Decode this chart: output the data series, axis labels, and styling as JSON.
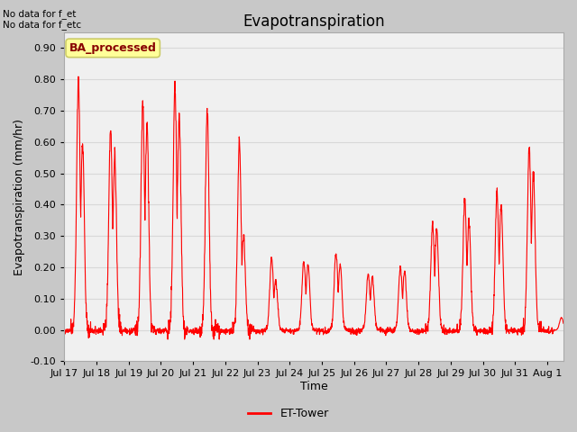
{
  "title": "Evapotranspiration",
  "ylabel": "Evapotranspiration (mm/hr)",
  "xlabel": "Time",
  "ylim": [
    -0.1,
    0.95
  ],
  "ytick_vals": [
    -0.1,
    0.0,
    0.1,
    0.2,
    0.3,
    0.4,
    0.5,
    0.6,
    0.7,
    0.8,
    0.9
  ],
  "line_color": "#ff0000",
  "line_label": "ET-Tower",
  "fig_bg_color": "#c8c8c8",
  "plot_bg_color": "#f0f0f0",
  "grid_color": "#d8d8d8",
  "annotation_top_left": "No data for f_et\nNo data for f_etc",
  "box_label": "BA_processed",
  "box_facecolor": "#ffff99",
  "box_edgecolor": "#cccc66",
  "box_text_color": "#880000",
  "title_fontsize": 12,
  "axis_label_fontsize": 9,
  "tick_fontsize": 8,
  "legend_fontsize": 9,
  "xtick_labels": [
    "Jul 17",
    "Jul 18",
    "Jul 19",
    "Jul 20",
    "Jul 21",
    "Jul 22",
    "Jul 23",
    "Jul 24",
    "Jul 25",
    "Jul 26",
    "Jul 27",
    "Jul 28",
    "Jul 29",
    "Jul 30",
    "Jul 31",
    "Aug 1"
  ],
  "day_peaks": [
    0.8,
    0.65,
    0.72,
    0.78,
    0.7,
    0.6,
    0.23,
    0.22,
    0.25,
    0.18,
    0.2,
    0.34,
    0.42,
    0.44,
    0.59,
    0.04
  ],
  "day_peaks2": [
    0.6,
    0.55,
    0.65,
    0.68,
    0.0,
    0.3,
    0.16,
    0.21,
    0.21,
    0.17,
    0.19,
    0.32,
    0.35,
    0.4,
    0.5,
    0.02
  ]
}
